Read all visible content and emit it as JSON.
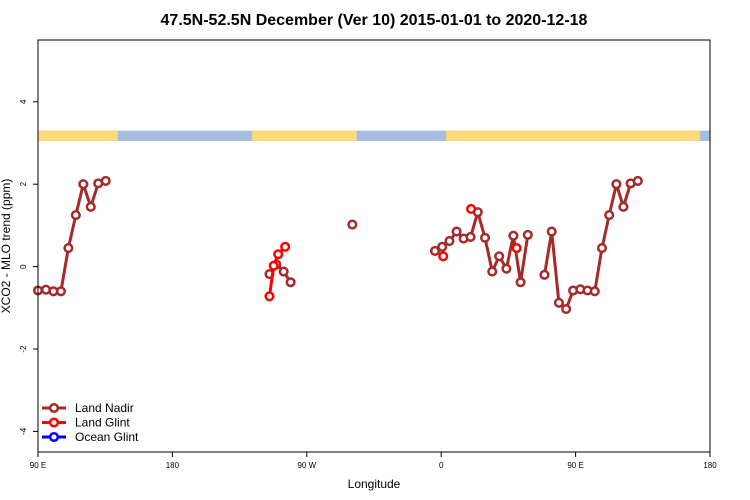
{
  "chart_data": {
    "type": "line",
    "title": "47.5N-52.5N December (Ver 10)   2015-01-01 to 2020-12-18",
    "xlabel": "Longitude",
    "ylabel": "XCO2 - MLO trend (ppm)",
    "xlim": [
      -90,
      180
    ],
    "ylim": [
      -4.5,
      5.5
    ],
    "x_ticks": [
      {
        "value": -90,
        "label": "90 E"
      },
      {
        "value": -36,
        "label": "180"
      },
      {
        "value": 18,
        "label": "90 W"
      },
      {
        "value": 72,
        "label": "0"
      },
      {
        "value": 126,
        "label": "90 E"
      },
      {
        "value": 180,
        "label": "180"
      }
    ],
    "y_ticks": [
      -4,
      -2,
      0,
      2,
      4
    ],
    "land_ocean_band": {
      "y_range": [
        3.05,
        3.3
      ],
      "land_color": "#FFD97A",
      "ocean_color": "#A7BEE0",
      "land_segments": [
        [
          -90,
          -58
        ],
        [
          -4,
          38
        ],
        [
          74,
          176
        ]
      ]
    },
    "legend": {
      "position": "bottom-left",
      "entries": [
        {
          "name": "Land Nadir",
          "color": "#A52A2A"
        },
        {
          "name": "Land Glint",
          "color": "#FF0000"
        },
        {
          "name": "Ocean Glint",
          "color": "#0000FF"
        }
      ]
    },
    "series": [
      {
        "name": "Land Nadir",
        "color": "#A52A2A",
        "segments": [
          [
            [
              -90,
              -0.58
            ],
            [
              -86.8,
              -0.56
            ],
            [
              -83.8,
              -0.6
            ],
            [
              -80.8,
              -0.6
            ],
            [
              -77.8,
              0.45
            ],
            [
              -74.8,
              1.25
            ],
            [
              -71.8,
              2.0
            ],
            [
              -68.8,
              1.45
            ],
            [
              -65.8,
              2.02
            ],
            [
              -62.8,
              2.08
            ]
          ],
          [
            [
              3.0,
              -0.18
            ],
            [
              5.8,
              0.05
            ],
            [
              8.7,
              -0.12
            ],
            [
              11.5,
              -0.38
            ]
          ],
          [
            [
              36.3,
              1.02
            ]
          ],
          [
            [
              69.5,
              0.38
            ],
            [
              72.4,
              0.48
            ],
            [
              75.3,
              0.62
            ],
            [
              78.2,
              0.85
            ],
            [
              81.0,
              0.68
            ],
            [
              83.8,
              0.72
            ],
            [
              86.7,
              1.32
            ],
            [
              89.6,
              0.7
            ],
            [
              92.5,
              -0.12
            ],
            [
              95.3,
              0.25
            ],
            [
              98.2,
              -0.05
            ],
            [
              101.0,
              0.75
            ],
            [
              103.9,
              -0.38
            ],
            [
              106.8,
              0.77
            ]
          ],
          [
            [
              113.5,
              -0.2
            ],
            [
              116.4,
              0.85
            ],
            [
              119.3,
              -0.88
            ],
            [
              122.2,
              -1.03
            ],
            [
              125.0,
              -0.58
            ],
            [
              127.9,
              -0.55
            ],
            [
              130.8,
              -0.58
            ],
            [
              133.7,
              -0.6
            ],
            [
              136.6,
              0.45
            ],
            [
              139.5,
              1.25
            ],
            [
              142.4,
              2.0
            ],
            [
              145.2,
              1.45
            ],
            [
              148.1,
              2.02
            ],
            [
              151.0,
              2.08
            ]
          ]
        ]
      },
      {
        "name": "Land Glint",
        "color": "#FF0000",
        "segments": [
          [
            [
              3.0,
              -0.72
            ],
            [
              4.7,
              0.02
            ],
            [
              6.5,
              0.3
            ],
            [
              9.3,
              0.48
            ]
          ],
          [
            [
              72.8,
              0.25
            ]
          ],
          [
            [
              84.0,
              1.4
            ]
          ],
          [
            [
              102.3,
              0.45
            ]
          ]
        ]
      },
      {
        "name": "Ocean Glint",
        "color": "#0000FF",
        "segments": []
      }
    ]
  }
}
